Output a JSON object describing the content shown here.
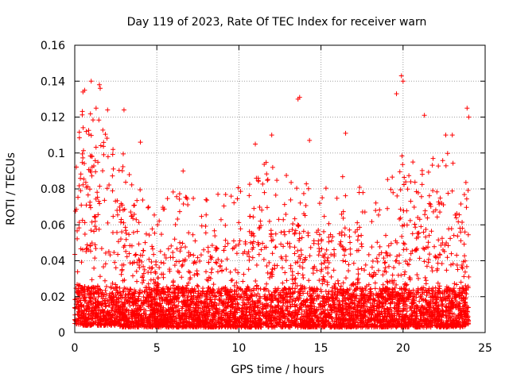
{
  "chart_data": {
    "type": "scatter",
    "title": "Day 119 of 2023, Rate Of TEC Index for receiver warn",
    "xlabel": "GPS time / hours",
    "ylabel": "ROTI / TECUs",
    "xlim": [
      0,
      25
    ],
    "ylim": [
      0,
      0.16
    ],
    "x_ticks": [
      "0",
      "5",
      "10",
      "15",
      "20",
      "25"
    ],
    "y_ticks": [
      "0",
      "0.02",
      "0.04",
      "0.06",
      "0.08",
      "0.1",
      "0.12",
      "0.14",
      "0.16"
    ],
    "grid": true,
    "legend": "none",
    "marker": "plus",
    "color": "#ff0000",
    "data_coverage_hours": [
      0,
      24
    ],
    "envelope": {
      "x": [
        0,
        0.5,
        1,
        1.5,
        2,
        2.5,
        3,
        3.5,
        4,
        4.5,
        5,
        5.5,
        6,
        6.5,
        7,
        7.5,
        8,
        8.5,
        9,
        9.5,
        10,
        10.5,
        11,
        11.5,
        12,
        12.5,
        13,
        13.5,
        14,
        14.5,
        15,
        15.5,
        16,
        16.5,
        17,
        17.5,
        18,
        18.5,
        19,
        19.5,
        20,
        20.5,
        21,
        21.5,
        22,
        22.5,
        23,
        23.5,
        24
      ],
      "typical_max": [
        0.07,
        0.1,
        0.095,
        0.09,
        0.085,
        0.075,
        0.07,
        0.06,
        0.055,
        0.045,
        0.04,
        0.045,
        0.05,
        0.05,
        0.05,
        0.045,
        0.045,
        0.05,
        0.05,
        0.05,
        0.055,
        0.055,
        0.06,
        0.07,
        0.065,
        0.06,
        0.06,
        0.065,
        0.06,
        0.055,
        0.06,
        0.055,
        0.055,
        0.06,
        0.055,
        0.05,
        0.05,
        0.05,
        0.055,
        0.06,
        0.07,
        0.075,
        0.065,
        0.065,
        0.075,
        0.075,
        0.07,
        0.065,
        0.05
      ],
      "typical_min": [
        0.005,
        0.004,
        0.004,
        0.004,
        0.004,
        0.004,
        0.003,
        0.003,
        0.003,
        0.003,
        0.003,
        0.003,
        0.003,
        0.003,
        0.003,
        0.003,
        0.003,
        0.003,
        0.003,
        0.003,
        0.003,
        0.003,
        0.003,
        0.003,
        0.003,
        0.003,
        0.003,
        0.003,
        0.003,
        0.003,
        0.003,
        0.003,
        0.003,
        0.003,
        0.003,
        0.003,
        0.003,
        0.003,
        0.003,
        0.003,
        0.003,
        0.003,
        0.003,
        0.003,
        0.003,
        0.003,
        0.003,
        0.003,
        0.004
      ]
    },
    "notable_points": {
      "x": [
        0.5,
        0.6,
        1.0,
        1.5,
        1.55,
        1.3,
        2.0,
        3.0,
        4.0,
        6.6,
        11.0,
        12.0,
        13.6,
        13.7,
        14.3,
        16.5,
        19.6,
        19.9,
        20.0,
        21.3,
        22.6,
        23.0,
        23.9,
        24.0
      ],
      "y": [
        0.134,
        0.135,
        0.14,
        0.138,
        0.136,
        0.125,
        0.124,
        0.124,
        0.106,
        0.09,
        0.105,
        0.11,
        0.13,
        0.131,
        0.107,
        0.111,
        0.133,
        0.143,
        0.14,
        0.121,
        0.11,
        0.11,
        0.125,
        0.12
      ]
    },
    "n_points": 5200
  }
}
